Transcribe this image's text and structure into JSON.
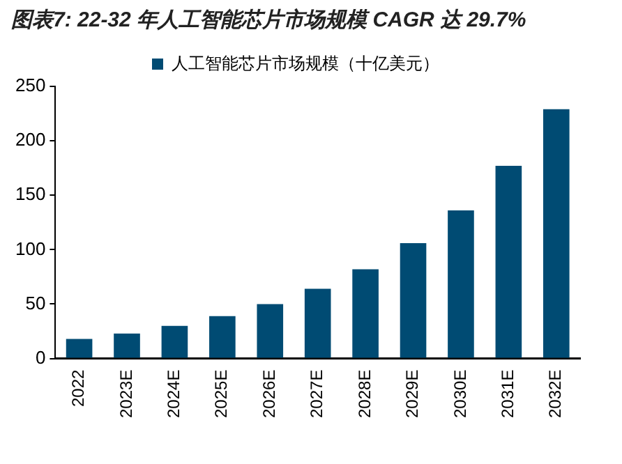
{
  "chart_data": {
    "type": "bar",
    "title": "图表7: 22-32 年人工智能芯片市场规模 CAGR 达 29.7%",
    "categories": [
      "2022",
      "2023E",
      "2024E",
      "2025E",
      "2026E",
      "2027E",
      "2028E",
      "2029E",
      "2030E",
      "2031E",
      "2032E"
    ],
    "series": [
      {
        "name": "人工智能芯片市场规模（十亿美元）",
        "color": "#004b73",
        "values": [
          18,
          23,
          30,
          39,
          50,
          64,
          82,
          106,
          136,
          177,
          229
        ]
      }
    ],
    "ylim": [
      0,
      250
    ],
    "yticks": [
      0,
      50,
      100,
      150,
      200,
      250
    ],
    "grid": false,
    "legend": "top"
  }
}
